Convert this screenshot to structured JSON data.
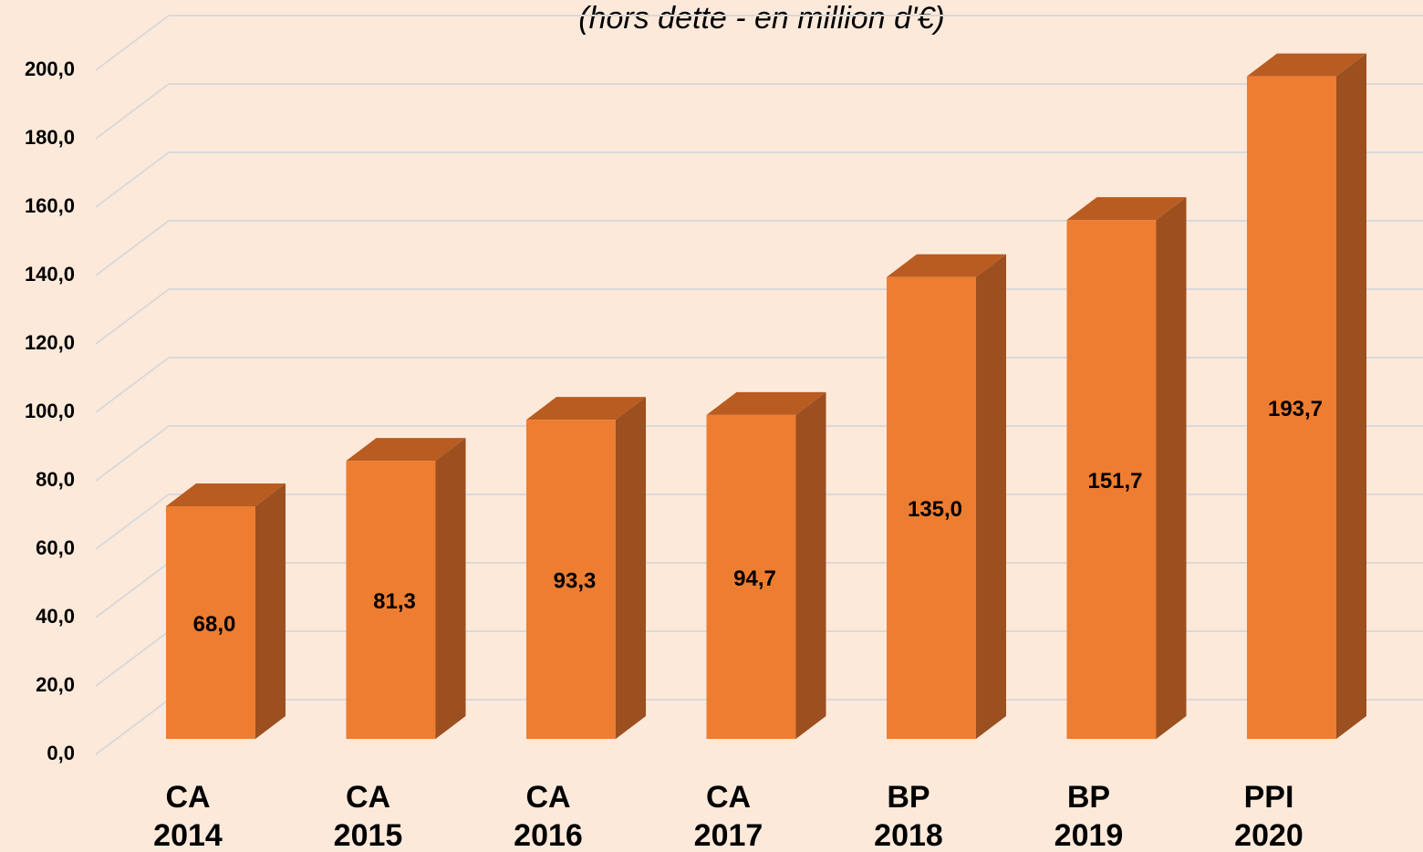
{
  "chart_data": {
    "type": "bar3d",
    "title": "(hors dette - en million d'€)",
    "categories": [
      "CA 2014",
      "CA 2015",
      "CA 2016",
      "CA 2017",
      "BP 2018",
      "BP 2019",
      "PPI 2020"
    ],
    "values": [
      68.0,
      81.3,
      93.3,
      94.7,
      135.0,
      151.7,
      193.7
    ],
    "value_labels": [
      "68,0",
      "81,3",
      "93,3",
      "94,7",
      "135,0",
      "151,7",
      "193,7"
    ],
    "color": "#ed7d31",
    "ylim": [
      0,
      200
    ],
    "yticks": [
      {
        "value": 0,
        "label": "0,0"
      },
      {
        "value": 20,
        "label": "20,0"
      },
      {
        "value": 40,
        "label": "40,0"
      },
      {
        "value": 60,
        "label": "60,0"
      },
      {
        "value": 80,
        "label": "80,0"
      },
      {
        "value": 100,
        "label": "100,0"
      },
      {
        "value": 120,
        "label": "120,0"
      },
      {
        "value": 140,
        "label": "140,0"
      },
      {
        "value": 160,
        "label": "160,0"
      },
      {
        "value": 180,
        "label": "180,0"
      },
      {
        "value": 200,
        "label": "200,0"
      }
    ],
    "grid": true
  }
}
